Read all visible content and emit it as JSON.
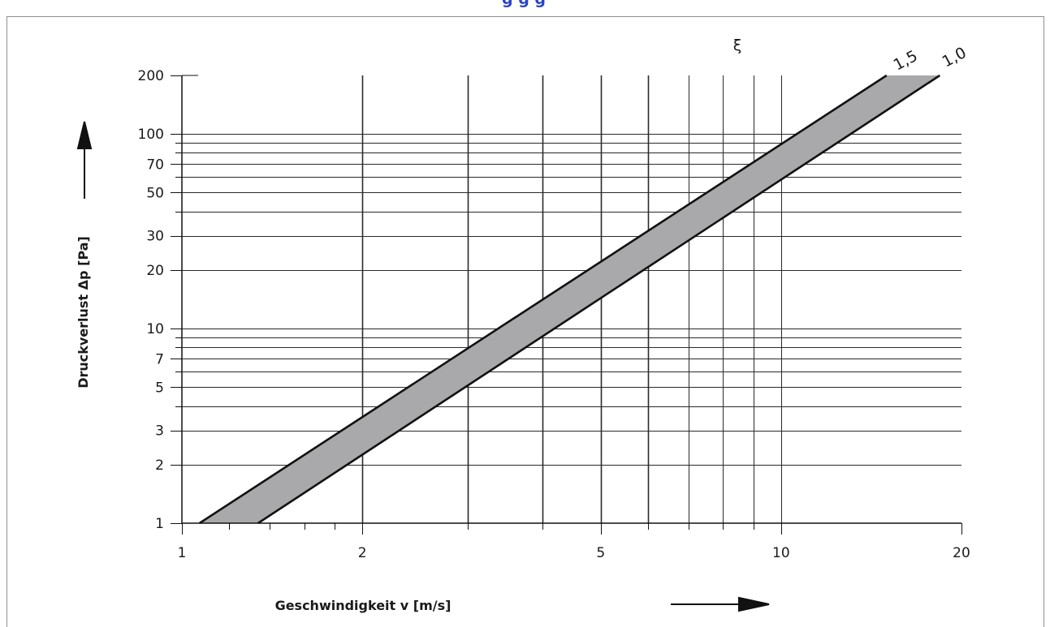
{
  "colors": {
    "band_fill": "#a9a9ab",
    "band_edge": "#111111",
    "grid": "#2a2a2a",
    "frame": "#8e8e8e",
    "title": "#2a44c8",
    "text": "#1a1a1a"
  },
  "page_title_visible": "g              g g",
  "chart_data": {
    "type": "area",
    "xscale": "log",
    "yscale": "log",
    "xlim": [
      1,
      20
    ],
    "ylim": [
      1,
      200
    ],
    "xlabel": "Geschwindigkeit v [m/s]",
    "ylabel": "Druckverlust Δp [Pa]",
    "xticks": [
      {
        "value": 1,
        "label": "1"
      },
      {
        "value": 2,
        "label": "2"
      },
      {
        "value": 5,
        "label": "5"
      },
      {
        "value": 10,
        "label": "10"
      },
      {
        "value": 20,
        "label": "20"
      }
    ],
    "yticks": [
      {
        "value": 1,
        "label": "1"
      },
      {
        "value": 2,
        "label": "2"
      },
      {
        "value": 3,
        "label": "3"
      },
      {
        "value": 5,
        "label": "5"
      },
      {
        "value": 7,
        "label": "7"
      },
      {
        "value": 10,
        "label": "10"
      },
      {
        "value": 20,
        "label": "20"
      },
      {
        "value": 30,
        "label": "30"
      },
      {
        "value": 50,
        "label": "50"
      },
      {
        "value": 70,
        "label": "70"
      },
      {
        "value": 100,
        "label": "100"
      },
      {
        "value": 200,
        "label": "200"
      }
    ],
    "parameter_symbol": "ξ",
    "series": [
      {
        "name": "1,5",
        "x": [
          1.07,
          15.0
        ],
        "y": [
          1,
          200
        ]
      },
      {
        "name": "1,0",
        "x": [
          1.34,
          18.4
        ],
        "y": [
          1,
          200
        ]
      }
    ],
    "grid": true
  }
}
